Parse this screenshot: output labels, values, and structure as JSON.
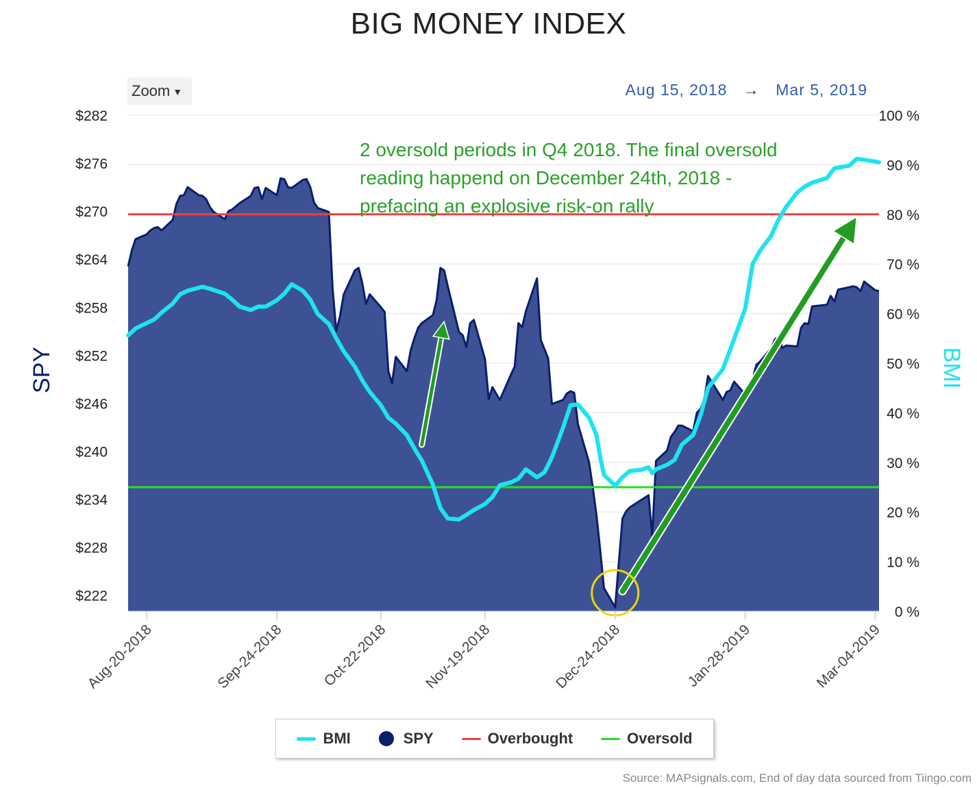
{
  "title": "BIG MONEY INDEX",
  "zoom_label": "Zoom",
  "date_range": {
    "from": "Aug 15, 2018",
    "arrow": "→",
    "to": "Mar 5, 2019"
  },
  "source": "Source: MAPsignals.com, End of day data sourced from Tiingo.com",
  "annotation": [
    "2 oversold periods in Q4 2018. The final oversold",
    "reading happend on December 24th, 2018 -",
    "prefacing an explosive risk-on rally"
  ],
  "legend": [
    {
      "label": "BMI",
      "color": "#1ee3f0",
      "symbol": "line"
    },
    {
      "label": "SPY",
      "color": "#0a1f6b",
      "symbol": "dot"
    },
    {
      "label": "Overbought",
      "color": "#f04040",
      "symbol": "line"
    },
    {
      "label": "Oversold",
      "color": "#22e022",
      "symbol": "line"
    }
  ],
  "colors": {
    "spy_fill": "#3d5294",
    "spy_line": "#0a1f6b",
    "bmi": "#1ee3f0",
    "overbought": "#f04040",
    "oversold": "#22e022",
    "annotation": "#2aa12a",
    "arrow": "#239c23",
    "circle": "#f2d500"
  },
  "chart_data": {
    "type": "area",
    "x_range": [
      "2018-08-15",
      "2019-03-05"
    ],
    "x_ticks": [
      "Aug-20-2018",
      "Sep-24-2018",
      "Oct-22-2018",
      "Nov-19-2018",
      "Dec-24-2018",
      "Jan-28-2019",
      "Mar-04-2019"
    ],
    "y_left": {
      "label": "SPY",
      "range": [
        220,
        282
      ],
      "ticks": [
        "$282",
        "$276",
        "$270",
        "$264",
        "$258",
        "$252",
        "$246",
        "$240",
        "$234",
        "$228",
        "$222"
      ]
    },
    "y_right": {
      "label": "BMI",
      "range": [
        0,
        100
      ],
      "ticks": [
        "100 %",
        "90 %",
        "80 %",
        "70 %",
        "60 %",
        "50 %",
        "40 %",
        "30 %",
        "20 %",
        "10 %",
        "0 %"
      ]
    },
    "overbought_level": 80,
    "oversold_level": 25,
    "series": [
      {
        "name": "SPY",
        "axis": "left",
        "points": [
          [
            "2018-08-15",
            263.1
          ],
          [
            "2018-08-16",
            265.1
          ],
          [
            "2018-08-17",
            266.5
          ],
          [
            "2018-08-20",
            267.1
          ],
          [
            "2018-08-21",
            267.6
          ],
          [
            "2018-08-22",
            267.9
          ],
          [
            "2018-08-23",
            268.0
          ],
          [
            "2018-08-24",
            267.6
          ],
          [
            "2018-08-27",
            268.9
          ],
          [
            "2018-08-28",
            270.9
          ],
          [
            "2018-08-29",
            271.9
          ],
          [
            "2018-08-30",
            272.0
          ],
          [
            "2018-08-31",
            273.0
          ],
          [
            "2018-09-03",
            272.0
          ],
          [
            "2018-09-04",
            271.9
          ],
          [
            "2018-09-05",
            271.5
          ],
          [
            "2018-09-06",
            270.5
          ],
          [
            "2018-09-07",
            269.9
          ],
          [
            "2018-09-10",
            269.0
          ],
          [
            "2018-09-11",
            270.0
          ],
          [
            "2018-09-12",
            270.2
          ],
          [
            "2018-09-13",
            270.6
          ],
          [
            "2018-09-14",
            271.0
          ],
          [
            "2018-09-17",
            271.9
          ],
          [
            "2018-09-18",
            272.9
          ],
          [
            "2018-09-19",
            273.0
          ],
          [
            "2018-09-20",
            271.5
          ],
          [
            "2018-09-21",
            272.9
          ],
          [
            "2018-09-24",
            272.0
          ],
          [
            "2018-09-25",
            274.1
          ],
          [
            "2018-09-26",
            274.0
          ],
          [
            "2018-09-27",
            273.0
          ],
          [
            "2018-09-28",
            272.9
          ],
          [
            "2018-10-01",
            273.9
          ],
          [
            "2018-10-02",
            274.0
          ],
          [
            "2018-10-03",
            273.0
          ],
          [
            "2018-10-04",
            271.1
          ],
          [
            "2018-10-05",
            270.4
          ],
          [
            "2018-10-08",
            269.9
          ],
          [
            "2018-10-09",
            260.4
          ],
          [
            "2018-10-10",
            255.0
          ],
          [
            "2018-10-11",
            256.9
          ],
          [
            "2018-10-12",
            259.6
          ],
          [
            "2018-10-15",
            262.6
          ],
          [
            "2018-10-16",
            262.9
          ],
          [
            "2018-10-17",
            261.0
          ],
          [
            "2018-10-18",
            258.4
          ],
          [
            "2018-10-19",
            259.6
          ],
          [
            "2018-10-22",
            258.0
          ],
          [
            "2018-10-23",
            257.4
          ],
          [
            "2018-10-24",
            250.0
          ],
          [
            "2018-10-25",
            248.5
          ],
          [
            "2018-10-26",
            251.8
          ],
          [
            "2018-10-29",
            250.0
          ],
          [
            "2018-10-30",
            252.6
          ],
          [
            "2018-10-31",
            254.1
          ],
          [
            "2018-11-01",
            255.4
          ],
          [
            "2018-11-02",
            256.0
          ],
          [
            "2018-11-05",
            257.0
          ],
          [
            "2018-11-06",
            258.9
          ],
          [
            "2018-11-07",
            262.9
          ],
          [
            "2018-11-08",
            262.6
          ],
          [
            "2018-11-09",
            260.6
          ],
          [
            "2018-11-12",
            254.9
          ],
          [
            "2018-11-13",
            254.5
          ],
          [
            "2018-11-14",
            253.0
          ],
          [
            "2018-11-15",
            256.0
          ],
          [
            "2018-11-16",
            256.4
          ],
          [
            "2018-11-19",
            251.5
          ],
          [
            "2018-11-20",
            246.5
          ],
          [
            "2018-11-21",
            248.0
          ],
          [
            "2018-11-23",
            246.4
          ],
          [
            "2018-11-26",
            249.6
          ],
          [
            "2018-11-27",
            250.6
          ],
          [
            "2018-11-28",
            256.0
          ],
          [
            "2018-11-29",
            255.5
          ],
          [
            "2018-11-30",
            257.5
          ],
          [
            "2018-12-03",
            261.6
          ],
          [
            "2018-12-04",
            253.9
          ],
          [
            "2018-12-06",
            251.6
          ],
          [
            "2018-12-07",
            245.9
          ],
          [
            "2018-12-10",
            246.4
          ],
          [
            "2018-12-11",
            247.2
          ],
          [
            "2018-12-12",
            247.5
          ],
          [
            "2018-12-13",
            247.3
          ],
          [
            "2018-12-14",
            243.4
          ],
          [
            "2018-12-17",
            238.6
          ],
          [
            "2018-12-18",
            235.5
          ],
          [
            "2018-12-19",
            232.0
          ],
          [
            "2018-12-20",
            227.6
          ],
          [
            "2018-12-21",
            222.9
          ],
          [
            "2018-12-24",
            220.5
          ],
          [
            "2018-12-26",
            231.6
          ],
          [
            "2018-12-27",
            232.5
          ],
          [
            "2018-12-28",
            233.0
          ],
          [
            "2018-12-31",
            233.9
          ],
          [
            "2019-01-02",
            234.5
          ],
          [
            "2019-01-03",
            229.4
          ],
          [
            "2019-01-04",
            238.8
          ],
          [
            "2019-01-07",
            240.1
          ],
          [
            "2019-01-08",
            241.8
          ],
          [
            "2019-01-09",
            242.4
          ],
          [
            "2019-01-10",
            243.2
          ],
          [
            "2019-01-11",
            243.2
          ],
          [
            "2019-01-14",
            242.5
          ],
          [
            "2019-01-15",
            244.8
          ],
          [
            "2019-01-16",
            245.3
          ],
          [
            "2019-01-17",
            246.5
          ],
          [
            "2019-01-18",
            249.4
          ],
          [
            "2019-01-22",
            246.4
          ],
          [
            "2019-01-23",
            247.4
          ],
          [
            "2019-01-24",
            247.6
          ],
          [
            "2019-01-25",
            248.7
          ],
          [
            "2019-01-28",
            247.1
          ],
          [
            "2019-01-29",
            246.9
          ],
          [
            "2019-01-30",
            249.0
          ],
          [
            "2019-01-31",
            250.8
          ],
          [
            "2019-02-01",
            251.2
          ],
          [
            "2019-02-04",
            252.9
          ],
          [
            "2019-02-05",
            254.0
          ],
          [
            "2019-02-06",
            254.3
          ],
          [
            "2019-02-07",
            252.9
          ],
          [
            "2019-02-08",
            253.2
          ],
          [
            "2019-02-11",
            253.1
          ],
          [
            "2019-02-12",
            255.4
          ],
          [
            "2019-02-13",
            256.0
          ],
          [
            "2019-02-14",
            255.9
          ],
          [
            "2019-02-15",
            258.1
          ],
          [
            "2019-02-19",
            258.3
          ],
          [
            "2019-02-20",
            259.4
          ],
          [
            "2019-02-21",
            258.7
          ],
          [
            "2019-02-22",
            260.2
          ],
          [
            "2019-02-25",
            260.5
          ],
          [
            "2019-02-26",
            260.6
          ],
          [
            "2019-02-27",
            260.5
          ],
          [
            "2019-02-28",
            260.0
          ],
          [
            "2019-03-01",
            261.2
          ],
          [
            "2019-03-04",
            260.1
          ],
          [
            "2019-03-05",
            260.0
          ]
        ]
      },
      {
        "name": "BMI",
        "axis": "right",
        "points": [
          [
            "2018-08-15",
            55.6
          ],
          [
            "2018-08-17",
            57.0
          ],
          [
            "2018-08-20",
            58.1
          ],
          [
            "2018-08-22",
            58.8
          ],
          [
            "2018-08-24",
            60.2
          ],
          [
            "2018-08-27",
            62.0
          ],
          [
            "2018-08-29",
            63.9
          ],
          [
            "2018-08-31",
            64.6
          ],
          [
            "2018-09-04",
            65.4
          ],
          [
            "2018-09-06",
            65.0
          ],
          [
            "2018-09-10",
            64.0
          ],
          [
            "2018-09-12",
            62.8
          ],
          [
            "2018-09-14",
            61.4
          ],
          [
            "2018-09-17",
            60.7
          ],
          [
            "2018-09-19",
            61.4
          ],
          [
            "2018-09-21",
            61.4
          ],
          [
            "2018-09-24",
            62.7
          ],
          [
            "2018-09-26",
            64.0
          ],
          [
            "2018-09-28",
            65.9
          ],
          [
            "2018-10-01",
            64.6
          ],
          [
            "2018-10-03",
            62.8
          ],
          [
            "2018-10-05",
            59.9
          ],
          [
            "2018-10-08",
            57.9
          ],
          [
            "2018-10-10",
            55.0
          ],
          [
            "2018-10-12",
            52.4
          ],
          [
            "2018-10-15",
            49.3
          ],
          [
            "2018-10-17",
            46.5
          ],
          [
            "2018-10-19",
            44.2
          ],
          [
            "2018-10-22",
            41.5
          ],
          [
            "2018-10-24",
            39.0
          ],
          [
            "2018-10-26",
            37.8
          ],
          [
            "2018-10-29",
            35.5
          ],
          [
            "2018-10-31",
            32.8
          ],
          [
            "2018-11-02",
            30.4
          ],
          [
            "2018-11-05",
            25.5
          ],
          [
            "2018-11-07",
            20.8
          ],
          [
            "2018-11-09",
            18.7
          ],
          [
            "2018-11-12",
            18.5
          ],
          [
            "2018-11-14",
            19.4
          ],
          [
            "2018-11-16",
            20.4
          ],
          [
            "2018-11-19",
            21.6
          ],
          [
            "2018-11-21",
            23.0
          ],
          [
            "2018-11-23",
            25.4
          ],
          [
            "2018-11-26",
            26.0
          ],
          [
            "2018-11-28",
            26.7
          ],
          [
            "2018-11-30",
            28.6
          ],
          [
            "2018-12-03",
            27.0
          ],
          [
            "2018-12-05",
            28.0
          ],
          [
            "2018-12-07",
            31.0
          ],
          [
            "2018-12-10",
            37.0
          ],
          [
            "2018-12-12",
            41.5
          ],
          [
            "2018-12-14",
            41.7
          ],
          [
            "2018-12-17",
            39.0
          ],
          [
            "2018-12-19",
            35.5
          ],
          [
            "2018-12-20",
            31.0
          ],
          [
            "2018-12-21",
            27.5
          ],
          [
            "2018-12-24",
            25.3
          ],
          [
            "2018-12-26",
            27.0
          ],
          [
            "2018-12-28",
            28.3
          ],
          [
            "2018-12-31",
            28.5
          ],
          [
            "2019-01-02",
            29.0
          ],
          [
            "2019-01-03",
            27.8
          ],
          [
            "2019-01-04",
            28.6
          ],
          [
            "2019-01-07",
            29.5
          ],
          [
            "2019-01-09",
            30.5
          ],
          [
            "2019-01-11",
            33.6
          ],
          [
            "2019-01-14",
            35.5
          ],
          [
            "2019-01-16",
            39.5
          ],
          [
            "2019-01-18",
            45.0
          ],
          [
            "2019-01-22",
            48.8
          ],
          [
            "2019-01-24",
            52.8
          ],
          [
            "2019-01-28",
            61.0
          ],
          [
            "2019-01-30",
            70.0
          ],
          [
            "2019-02-01",
            72.7
          ],
          [
            "2019-02-04",
            75.7
          ],
          [
            "2019-02-06",
            79.0
          ],
          [
            "2019-02-08",
            81.5
          ],
          [
            "2019-02-11",
            84.4
          ],
          [
            "2019-02-13",
            85.6
          ],
          [
            "2019-02-15",
            86.4
          ],
          [
            "2019-02-19",
            87.3
          ],
          [
            "2019-02-21",
            89.3
          ],
          [
            "2019-02-25",
            89.8
          ],
          [
            "2019-02-27",
            91.2
          ],
          [
            "2019-03-01",
            91.0
          ],
          [
            "2019-03-05",
            90.5
          ]
        ]
      },
      {
        "name": "Overbought",
        "axis": "right",
        "value": 80
      },
      {
        "name": "Oversold",
        "axis": "right",
        "value": 25
      }
    ]
  }
}
